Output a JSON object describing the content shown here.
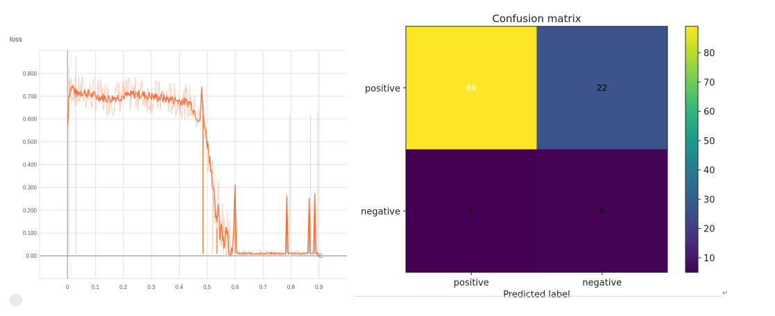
{
  "loss_chart": {
    "ylabel": "loss",
    "colors": {
      "line": "#f4733d",
      "raw": "#fbc9b3",
      "axis": "#999999",
      "grid": "#e2e2e2"
    }
  },
  "cm_chart": {
    "colormap": "viridis"
  },
  "chart_data": [
    {
      "type": "line",
      "title": "",
      "xlabel": "",
      "ylabel": "loss",
      "xlim": [
        -0.1,
        1.0
      ],
      "ylim": [
        -0.1,
        0.9
      ],
      "x_ticks": [
        "0",
        "0.1",
        "0.2",
        "0.3",
        "0.4",
        "0.5",
        "0.6",
        "0.7",
        "0.8",
        "0.9"
      ],
      "y_ticks": [
        "0.00",
        "0.100",
        "0.200",
        "0.300",
        "0.400",
        "0.500",
        "0.600",
        "0.700",
        "0.800"
      ],
      "grid": true,
      "series": [
        {
          "x": [
            0.0,
            0.005,
            0.01,
            0.02,
            0.03,
            0.05,
            0.1,
            0.15,
            0.2,
            0.25,
            0.3,
            0.35,
            0.4,
            0.44,
            0.46,
            0.475,
            0.48,
            0.485,
            0.49,
            0.495,
            0.5,
            0.505,
            0.51,
            0.515,
            0.52,
            0.525,
            0.53,
            0.535,
            0.54,
            0.545,
            0.55,
            0.56,
            0.57,
            0.58,
            0.59,
            0.6,
            0.605,
            0.61,
            0.62,
            0.65,
            0.7,
            0.75,
            0.78,
            0.785,
            0.79,
            0.8,
            0.85,
            0.86,
            0.865,
            0.87,
            0.88,
            0.885,
            0.89,
            0.895,
            0.9,
            0.905
          ],
          "y": [
            0.57,
            0.7,
            0.73,
            0.74,
            0.71,
            0.72,
            0.7,
            0.69,
            0.7,
            0.71,
            0.7,
            0.69,
            0.68,
            0.67,
            0.62,
            0.59,
            0.74,
            0.62,
            0.58,
            0.54,
            0.5,
            0.46,
            0.42,
            0.38,
            0.3,
            0.25,
            0.18,
            0.12,
            0.25,
            0.08,
            0.15,
            0.05,
            0.12,
            0.02,
            0.03,
            0.28,
            0.02,
            0.01,
            0.01,
            0.01,
            0.01,
            0.01,
            0.01,
            0.26,
            0.01,
            0.01,
            0.01,
            0.01,
            0.25,
            0.01,
            0.01,
            0.27,
            0.01,
            0.01,
            0.0,
            0.0
          ]
        }
      ]
    },
    {
      "type": "heatmap",
      "title": "Confusion matrix",
      "xlabel": "Predicted label",
      "ylabel": "",
      "x_categories": [
        "positive",
        "negative"
      ],
      "y_categories": [
        "positive",
        "negative"
      ],
      "values": [
        [
          89,
          22
        ],
        [
          5,
          6
        ]
      ],
      "cell_label_strings": [
        "89",
        "22",
        "5",
        "6"
      ],
      "cell_colors": [
        [
          "#fde725",
          "#3b528b"
        ],
        [
          "#440154",
          "#440456"
        ]
      ],
      "cell_text_colors": [
        [
          "#ffffff",
          "#000000"
        ],
        [
          "#000000",
          "#000000"
        ]
      ],
      "colorbar_ticks": [
        "10",
        "20",
        "30",
        "40",
        "50",
        "60",
        "70",
        "80"
      ],
      "colorbar_range": [
        5,
        89
      ]
    }
  ]
}
